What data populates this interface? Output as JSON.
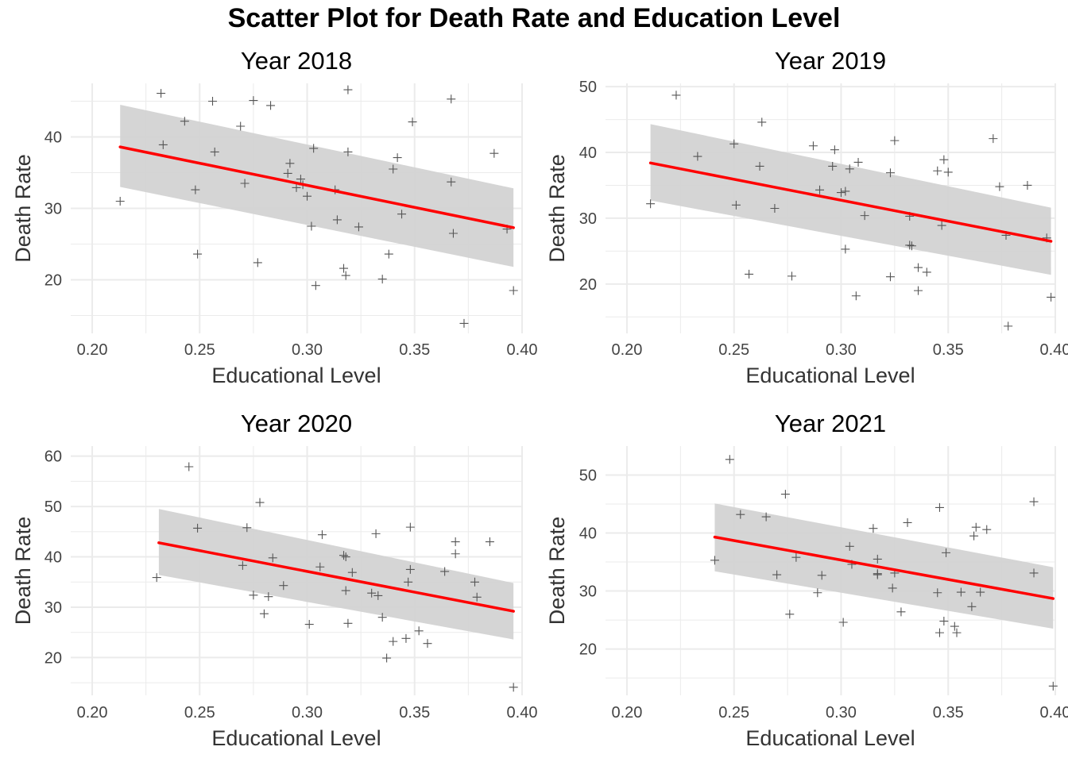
{
  "title": "Scatter Plot for Death Rate and Education Level",
  "colors": {
    "points": "#555555",
    "fit_line": "#ff0000",
    "ribbon": "#d3d3d3",
    "grid": "#ebebeb"
  },
  "chart_data": [
    {
      "type": "scatter",
      "title": "Year 2018",
      "xlabel": "Educational Level",
      "ylabel": "Death Rate",
      "xlim": [
        0.19,
        0.4
      ],
      "ylim": [
        12.5,
        47.5
      ],
      "xticks": [
        0.2,
        0.25,
        0.3,
        0.35,
        0.4
      ],
      "yticks": [
        20,
        30,
        40
      ],
      "xtick_labels": [
        "0.20",
        "0.25",
        "0.30",
        "0.35",
        "0.40"
      ],
      "ytick_labels": [
        "20",
        "30",
        "40"
      ],
      "marker": "+",
      "grid": true,
      "fit": {
        "method": "linear",
        "se_band": true,
        "x": [
          0.213,
          0.396
        ],
        "y": [
          38.6,
          27.3
        ],
        "lower": [
          33.0,
          21.8
        ],
        "upper": [
          44.5,
          32.8
        ]
      },
      "points": [
        [
          0.213,
          31.0
        ],
        [
          0.232,
          46.1
        ],
        [
          0.233,
          38.9
        ],
        [
          0.243,
          42.2
        ],
        [
          0.248,
          32.6
        ],
        [
          0.249,
          23.6
        ],
        [
          0.256,
          45.0
        ],
        [
          0.257,
          37.9
        ],
        [
          0.269,
          41.5
        ],
        [
          0.271,
          33.5
        ],
        [
          0.275,
          45.1
        ],
        [
          0.277,
          22.4
        ],
        [
          0.283,
          44.4
        ],
        [
          0.291,
          34.9
        ],
        [
          0.292,
          36.3
        ],
        [
          0.295,
          32.9
        ],
        [
          0.297,
          34.1
        ],
        [
          0.298,
          33.3
        ],
        [
          0.3,
          31.7
        ],
        [
          0.302,
          27.5
        ],
        [
          0.303,
          38.4
        ],
        [
          0.304,
          19.2
        ],
        [
          0.313,
          32.6
        ],
        [
          0.314,
          28.4
        ],
        [
          0.317,
          21.6
        ],
        [
          0.318,
          20.6
        ],
        [
          0.319,
          37.9
        ],
        [
          0.319,
          46.6
        ],
        [
          0.324,
          27.4
        ],
        [
          0.335,
          20.1
        ],
        [
          0.338,
          23.6
        ],
        [
          0.34,
          35.5
        ],
        [
          0.342,
          37.1
        ],
        [
          0.344,
          29.2
        ],
        [
          0.349,
          42.1
        ],
        [
          0.367,
          45.3
        ],
        [
          0.367,
          33.7
        ],
        [
          0.368,
          26.5
        ],
        [
          0.373,
          13.9
        ],
        [
          0.387,
          37.7
        ],
        [
          0.393,
          27.1
        ],
        [
          0.396,
          18.5
        ]
      ]
    },
    {
      "type": "scatter",
      "title": "Year 2019",
      "xlabel": "Educational Level",
      "ylabel": "Death Rate",
      "xlim": [
        0.19,
        0.4
      ],
      "ylim": [
        12.5,
        50.5
      ],
      "xticks": [
        0.2,
        0.25,
        0.3,
        0.35,
        0.4
      ],
      "yticks": [
        20,
        30,
        40,
        50
      ],
      "xtick_labels": [
        "0.20",
        "0.25",
        "0.30",
        "0.35",
        "0.40"
      ],
      "ytick_labels": [
        "20",
        "30",
        "40",
        "50"
      ],
      "marker": "+",
      "grid": true,
      "fit": {
        "method": "linear",
        "se_band": true,
        "x": [
          0.211,
          0.398
        ],
        "y": [
          38.4,
          26.5
        ],
        "lower": [
          32.7,
          21.4
        ],
        "upper": [
          44.3,
          31.6
        ]
      },
      "points": [
        [
          0.211,
          32.2
        ],
        [
          0.223,
          48.7
        ],
        [
          0.233,
          39.4
        ],
        [
          0.25,
          41.3
        ],
        [
          0.251,
          32.0
        ],
        [
          0.257,
          21.5
        ],
        [
          0.262,
          37.9
        ],
        [
          0.263,
          44.6
        ],
        [
          0.269,
          31.5
        ],
        [
          0.277,
          21.2
        ],
        [
          0.287,
          41.0
        ],
        [
          0.29,
          34.3
        ],
        [
          0.296,
          37.9
        ],
        [
          0.297,
          40.4
        ],
        [
          0.3,
          33.9
        ],
        [
          0.302,
          34.1
        ],
        [
          0.302,
          25.3
        ],
        [
          0.304,
          37.5
        ],
        [
          0.307,
          18.2
        ],
        [
          0.308,
          38.5
        ],
        [
          0.311,
          30.4
        ],
        [
          0.323,
          21.1
        ],
        [
          0.323,
          36.9
        ],
        [
          0.325,
          41.8
        ],
        [
          0.332,
          30.3
        ],
        [
          0.332,
          25.9
        ],
        [
          0.333,
          25.8
        ],
        [
          0.336,
          22.5
        ],
        [
          0.336,
          19.0
        ],
        [
          0.34,
          21.8
        ],
        [
          0.345,
          37.2
        ],
        [
          0.347,
          28.9
        ],
        [
          0.348,
          38.9
        ],
        [
          0.35,
          37.0
        ],
        [
          0.371,
          42.1
        ],
        [
          0.374,
          34.8
        ],
        [
          0.377,
          27.4
        ],
        [
          0.378,
          13.6
        ],
        [
          0.387,
          35.0
        ],
        [
          0.396,
          27.0
        ],
        [
          0.398,
          18.0
        ]
      ]
    },
    {
      "type": "scatter",
      "title": "Year 2020",
      "xlabel": "Educational Level",
      "ylabel": "Death Rate",
      "xlim": [
        0.19,
        0.4
      ],
      "ylim": [
        12.5,
        62.0
      ],
      "xticks": [
        0.2,
        0.25,
        0.3,
        0.35,
        0.4
      ],
      "yticks": [
        20,
        30,
        40,
        50,
        60
      ],
      "xtick_labels": [
        "0.20",
        "0.25",
        "0.30",
        "0.35",
        "0.40"
      ],
      "ytick_labels": [
        "20",
        "30",
        "40",
        "50",
        "60"
      ],
      "marker": "+",
      "grid": true,
      "fit": {
        "method": "linear",
        "se_band": true,
        "x": [
          0.231,
          0.396
        ],
        "y": [
          42.8,
          29.2
        ],
        "lower": [
          36.4,
          23.6
        ],
        "upper": [
          49.5,
          34.8
        ]
      },
      "points": [
        [
          0.23,
          35.9
        ],
        [
          0.245,
          57.9
        ],
        [
          0.249,
          45.7
        ],
        [
          0.27,
          38.3
        ],
        [
          0.272,
          45.8
        ],
        [
          0.275,
          32.4
        ],
        [
          0.278,
          50.8
        ],
        [
          0.28,
          28.7
        ],
        [
          0.282,
          32.1
        ],
        [
          0.284,
          39.8
        ],
        [
          0.289,
          34.3
        ],
        [
          0.301,
          26.6
        ],
        [
          0.306,
          38.0
        ],
        [
          0.307,
          44.4
        ],
        [
          0.317,
          40.3
        ],
        [
          0.318,
          33.3
        ],
        [
          0.318,
          40.0
        ],
        [
          0.319,
          26.8
        ],
        [
          0.321,
          36.9
        ],
        [
          0.33,
          32.8
        ],
        [
          0.332,
          44.6
        ],
        [
          0.333,
          32.3
        ],
        [
          0.335,
          28.0
        ],
        [
          0.337,
          19.9
        ],
        [
          0.34,
          23.2
        ],
        [
          0.346,
          23.8
        ],
        [
          0.347,
          35.0
        ],
        [
          0.348,
          45.9
        ],
        [
          0.348,
          37.5
        ],
        [
          0.352,
          25.3
        ],
        [
          0.356,
          22.8
        ],
        [
          0.364,
          37.1
        ],
        [
          0.369,
          43.0
        ],
        [
          0.369,
          40.6
        ],
        [
          0.378,
          35.0
        ],
        [
          0.379,
          32.0
        ],
        [
          0.385,
          43.0
        ],
        [
          0.396,
          14.1
        ]
      ]
    },
    {
      "type": "scatter",
      "title": "Year 2021",
      "xlabel": "Educational Level",
      "ylabel": "Death Rate",
      "xlim": [
        0.19,
        0.4
      ],
      "ylim": [
        12.0,
        55.0
      ],
      "xticks": [
        0.2,
        0.25,
        0.3,
        0.35,
        0.4
      ],
      "yticks": [
        20,
        30,
        40,
        50
      ],
      "xtick_labels": [
        "0.20",
        "0.25",
        "0.30",
        "0.35",
        "0.40"
      ],
      "ytick_labels": [
        "20",
        "30",
        "40",
        "50"
      ],
      "marker": "+",
      "grid": true,
      "fit": {
        "method": "linear",
        "se_band": true,
        "x": [
          0.241,
          0.399
        ],
        "y": [
          39.3,
          28.7
        ],
        "lower": [
          33.4,
          23.5
        ],
        "upper": [
          45.1,
          34.1
        ]
      },
      "points": [
        [
          0.241,
          35.3
        ],
        [
          0.248,
          52.7
        ],
        [
          0.253,
          43.2
        ],
        [
          0.265,
          42.8
        ],
        [
          0.27,
          32.8
        ],
        [
          0.274,
          46.7
        ],
        [
          0.276,
          26.0
        ],
        [
          0.279,
          35.8
        ],
        [
          0.289,
          29.7
        ],
        [
          0.291,
          32.7
        ],
        [
          0.301,
          24.6
        ],
        [
          0.304,
          37.7
        ],
        [
          0.305,
          34.6
        ],
        [
          0.315,
          40.8
        ],
        [
          0.317,
          35.5
        ],
        [
          0.317,
          33.0
        ],
        [
          0.317,
          32.8
        ],
        [
          0.324,
          30.5
        ],
        [
          0.325,
          33.1
        ],
        [
          0.328,
          26.4
        ],
        [
          0.331,
          41.8
        ],
        [
          0.345,
          29.7
        ],
        [
          0.346,
          44.4
        ],
        [
          0.346,
          22.8
        ],
        [
          0.348,
          24.8
        ],
        [
          0.349,
          36.6
        ],
        [
          0.353,
          23.9
        ],
        [
          0.354,
          22.8
        ],
        [
          0.356,
          29.8
        ],
        [
          0.361,
          27.3
        ],
        [
          0.362,
          39.5
        ],
        [
          0.363,
          41.0
        ],
        [
          0.365,
          29.8
        ],
        [
          0.368,
          40.6
        ],
        [
          0.39,
          45.4
        ],
        [
          0.39,
          33.1
        ],
        [
          0.399,
          13.6
        ]
      ]
    }
  ]
}
